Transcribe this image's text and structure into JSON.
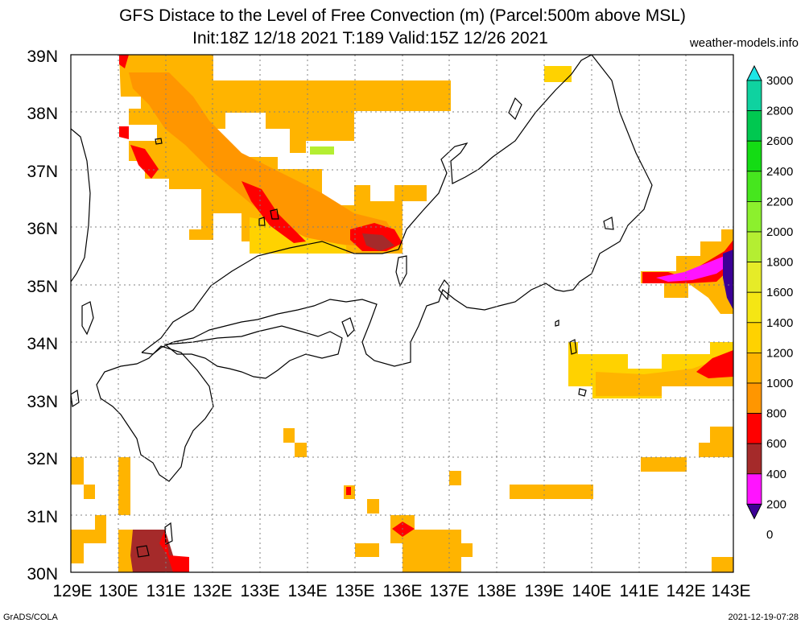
{
  "title_line1": "GFS Distace to the Level of Free Convection (m) (Parcel:500m above MSL)",
  "title_line2": "Init:18Z 12/18 2021 T:189 Valid:15Z 12/26 2021",
  "credit": "weather-models.info",
  "footer_left": "GrADS/COLA",
  "footer_right": "2021-12-19-07:28",
  "lat_labels": [
    "39N",
    "38N",
    "37N",
    "36N",
    "35N",
    "34N",
    "33N",
    "32N",
    "31N",
    "30N"
  ],
  "lon_labels": [
    "129E",
    "130E",
    "131E",
    "132E",
    "133E",
    "134E",
    "135E",
    "136E",
    "137E",
    "138E",
    "139E",
    "140E",
    "141E",
    "142E",
    "143E"
  ],
  "colorbar": {
    "labels": [
      "3000",
      "2800",
      "2600",
      "2400",
      "2200",
      "2000",
      "1800",
      "1600",
      "1400",
      "1200",
      "1000",
      "800",
      "600",
      "400",
      "200",
      "0"
    ],
    "colors": [
      "#1ee6e6",
      "#0fd2a0",
      "#00c850",
      "#14dc14",
      "#46e61e",
      "#8cf02d",
      "#b4ee32",
      "#e6eb28",
      "#f5e614",
      "#ffd200",
      "#ffb400",
      "#ff9600",
      "#ff0000",
      "#a52a2a",
      "#ff14ff",
      "#3c0096"
    ]
  },
  "chart_data": {
    "type": "map",
    "region": {
      "lon": [
        129,
        143
      ],
      "lat": [
        30,
        39
      ]
    },
    "variable": "Distance to LFC (m)",
    "levels": [
      0,
      200,
      400,
      600,
      800,
      1000,
      1200,
      1400,
      1600,
      1800,
      2000,
      2200,
      2400,
      2600,
      2800,
      3000
    ],
    "grid": true
  }
}
